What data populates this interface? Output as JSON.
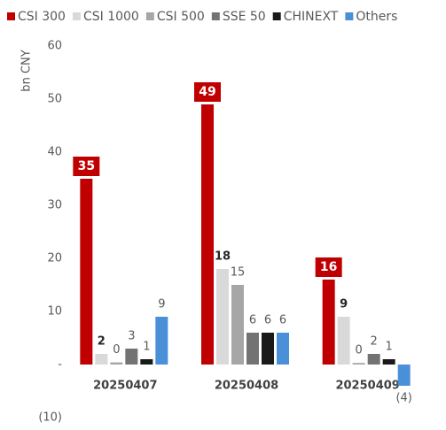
{
  "chart_data": {
    "type": "bar",
    "y_label": "bn CNY",
    "categories": [
      "20250407",
      "20250408",
      "20250409"
    ],
    "series": [
      {
        "name": "CSI 300",
        "color": "#c00000",
        "values": [
          35,
          49,
          16
        ]
      },
      {
        "name": "CSI 1000",
        "color": "#d9d9d9",
        "values": [
          2,
          18,
          9
        ]
      },
      {
        "name": "CSI 500",
        "color": "#a6a6a6",
        "values": [
          0.4,
          15,
          0.3
        ],
        "value_labels": [
          "0",
          "15",
          "0"
        ]
      },
      {
        "name": "SSE 50",
        "color": "#737373",
        "values": [
          3,
          6,
          2
        ]
      },
      {
        "name": "CHINEXT",
        "color": "#1a1a1a",
        "values": [
          1,
          6,
          1
        ]
      },
      {
        "name": "Others",
        "color": "#4a90d9",
        "values": [
          9,
          6,
          -4
        ],
        "value_labels": [
          "9",
          "6",
          "(4)"
        ]
      }
    ],
    "ylim": [
      -10,
      60
    ],
    "yticks": [
      {
        "value": -10,
        "label": "(10)"
      },
      {
        "value": 0,
        "label": "-"
      },
      10,
      20,
      30,
      40,
      50,
      60
    ],
    "legend": "top"
  }
}
